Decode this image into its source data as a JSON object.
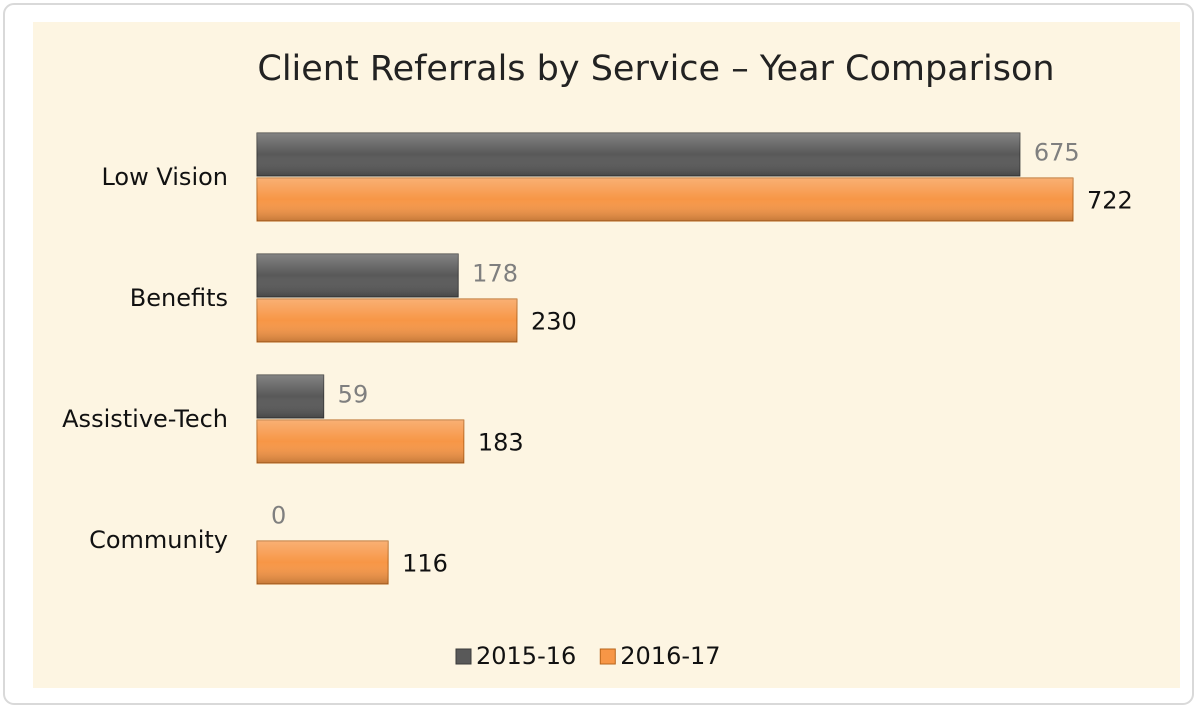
{
  "chart_data": {
    "type": "hbar",
    "title": "Client Referrals by Service – Year Comparison",
    "categories": [
      "Low Vision",
      "Benefits",
      "Assistive-Tech",
      "Community"
    ],
    "series": [
      {
        "name": "2015-16",
        "color": "#595959",
        "values": [
          675,
          178,
          59,
          0
        ]
      },
      {
        "name": "2016-17",
        "color": "#f79646",
        "values": [
          722,
          230,
          183,
          116
        ]
      }
    ],
    "legend": "bottom"
  }
}
